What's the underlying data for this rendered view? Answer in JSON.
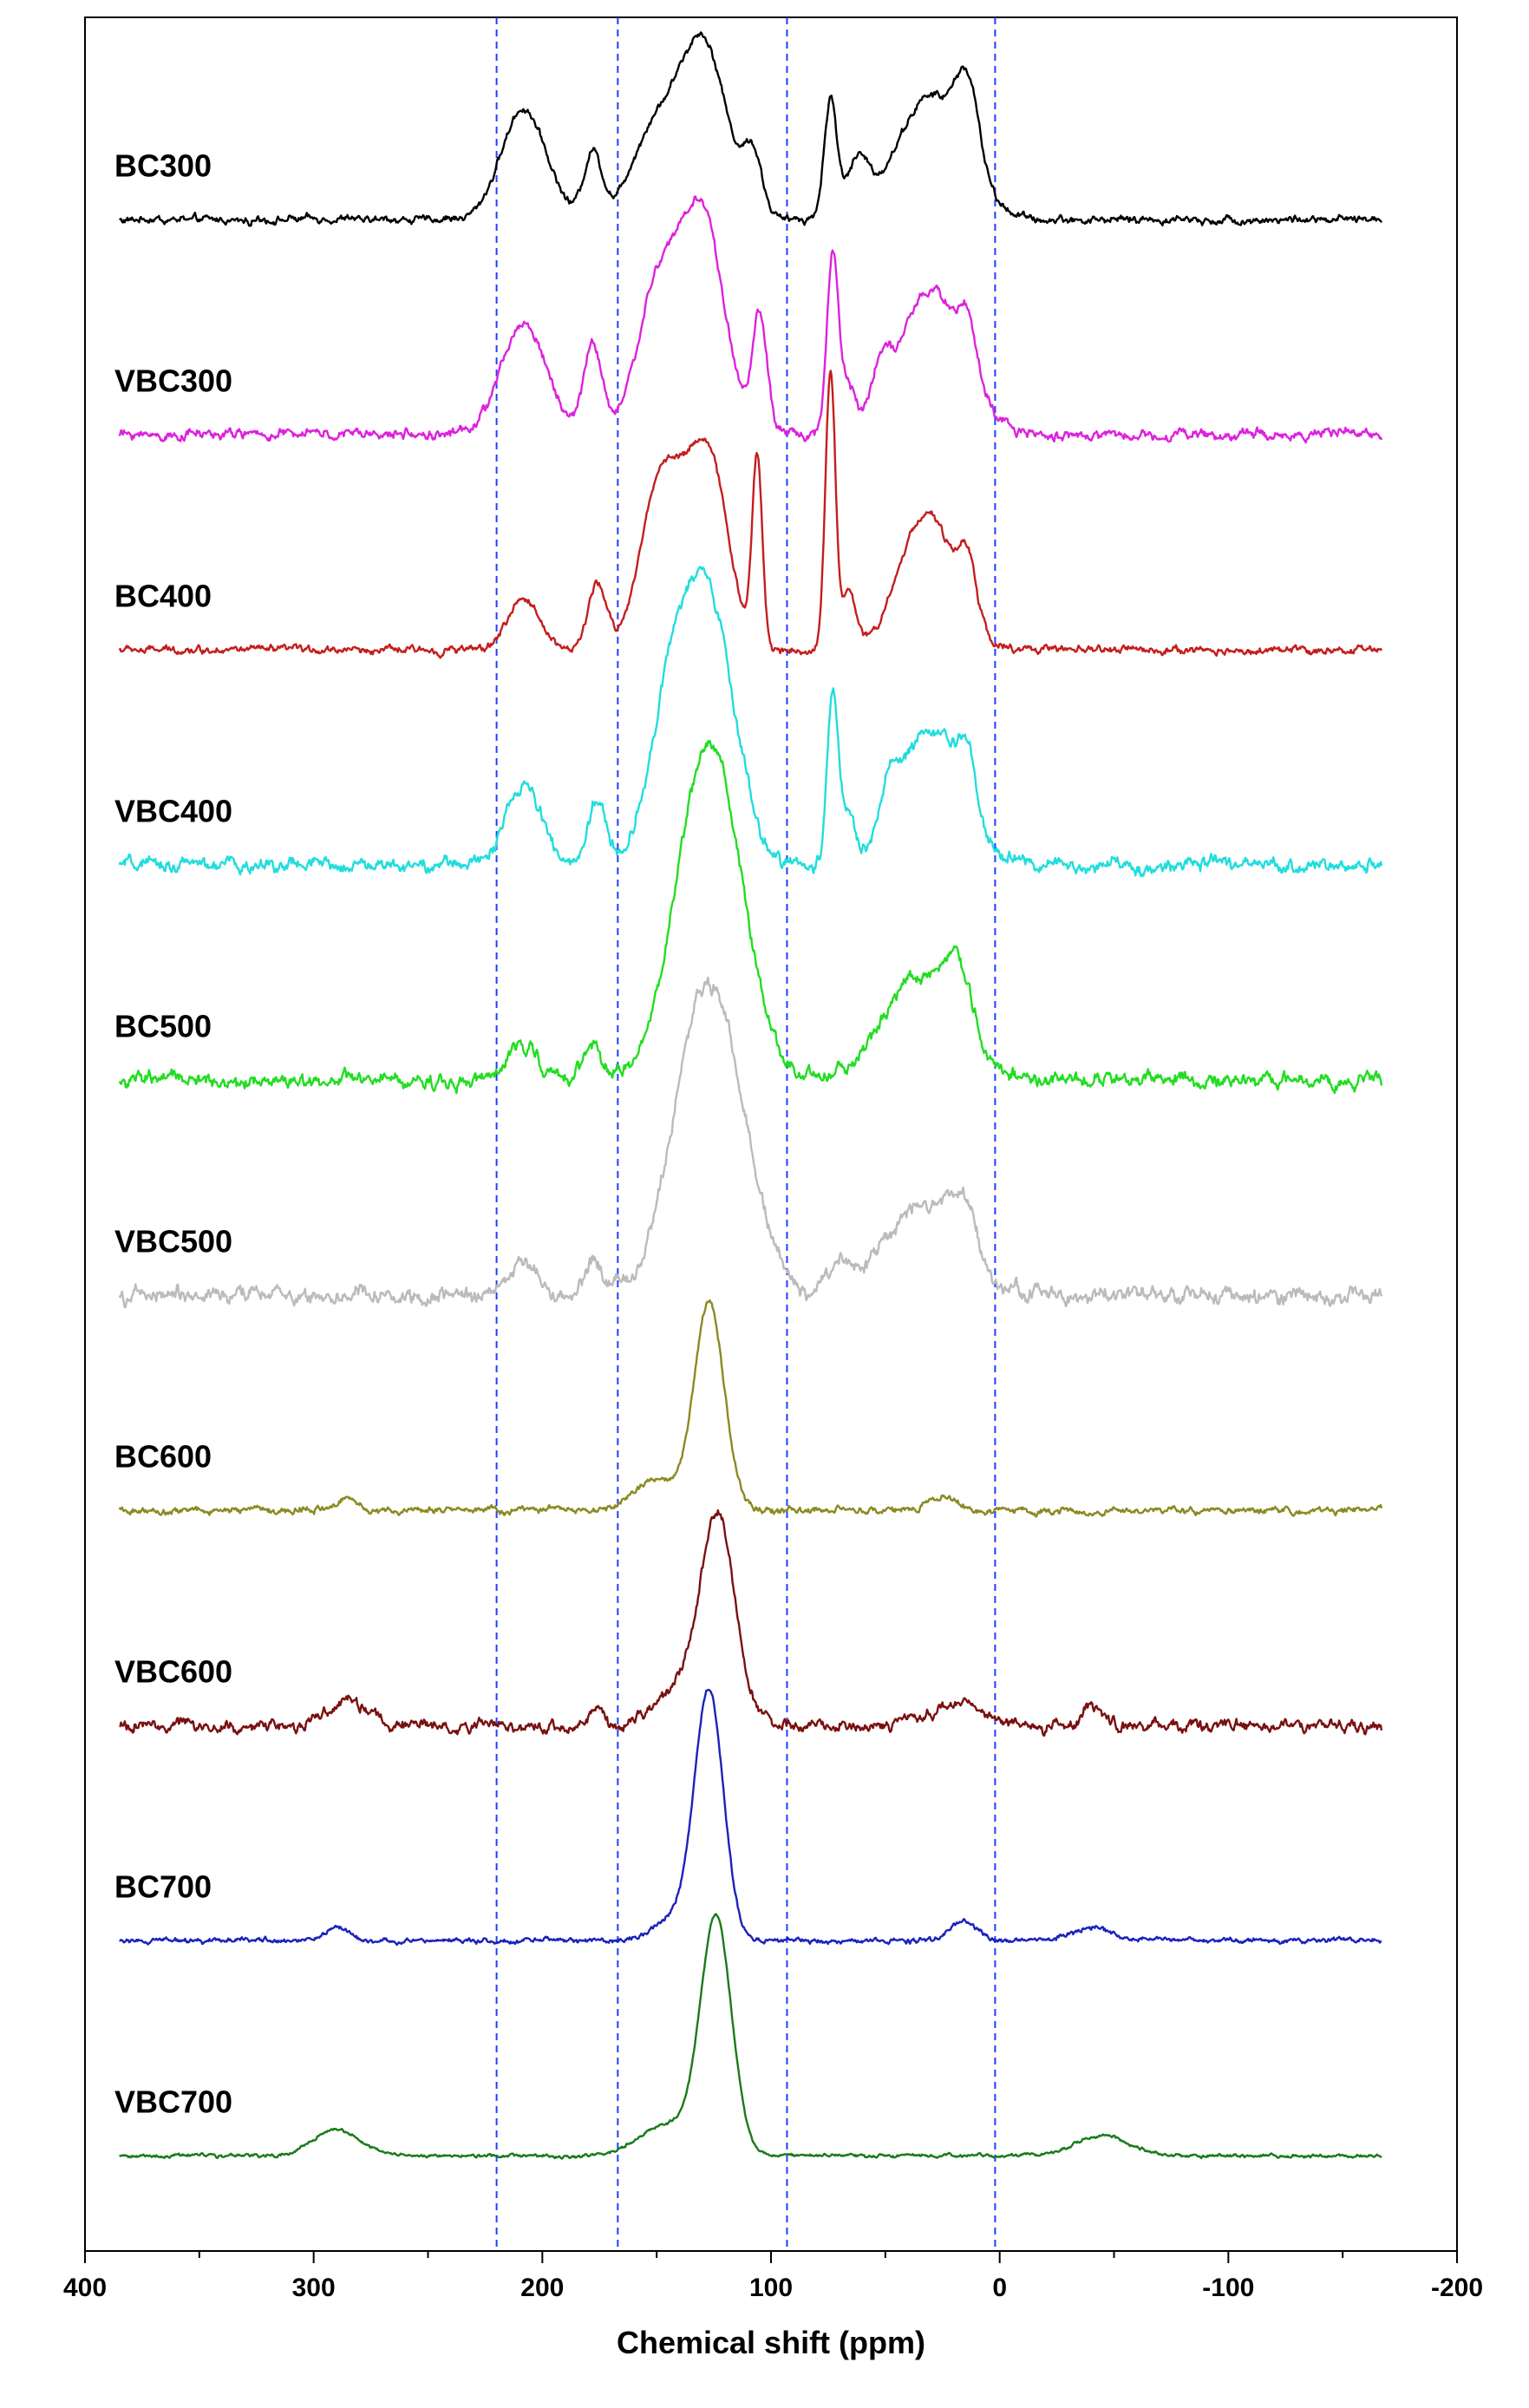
{
  "chart_data": {
    "type": "line",
    "title": "",
    "xlabel": "Chemical shift (ppm)",
    "ylabel": "",
    "xlim": [
      400,
      -200
    ],
    "x_ticks": [
      400,
      300,
      200,
      100,
      0,
      -100,
      -200
    ],
    "x_tick_labels": [
      "400",
      "300",
      "200",
      "100",
      "0",
      "-100",
      "-200"
    ],
    "x_data_range": [
      385,
      -167
    ],
    "grid": false,
    "legend": "none",
    "reference_lines": {
      "x_values": [
        220,
        167,
        93,
        2
      ],
      "style": "dashed",
      "color": "#1f3fff"
    },
    "series": [
      {
        "name": "BC300",
        "color": "#000000",
        "baseline": 0.9,
        "peaks": [
          [
            208,
            17,
            10
          ],
          [
            178,
            10,
            4
          ],
          [
            150,
            14,
            11
          ],
          [
            129,
            26,
            10
          ],
          [
            108,
            9,
            4
          ],
          [
            74,
            18,
            2.8
          ],
          [
            62,
            8,
            5
          ],
          [
            30,
            19,
            15
          ],
          [
            14,
            12,
            5
          ]
        ],
        "noise": 0.9
      },
      {
        "name": "VBC300",
        "color": "#dd22dd",
        "baseline": 0.9,
        "peaks": [
          [
            208,
            17,
            10
          ],
          [
            178,
            14,
            4
          ],
          [
            148,
            24,
            10
          ],
          [
            129,
            31,
            9
          ],
          [
            105,
            18,
            3.2
          ],
          [
            73,
            28,
            2.5
          ],
          [
            66,
            7,
            3
          ],
          [
            52,
            7,
            4
          ],
          [
            30,
            22,
            14
          ],
          [
            14,
            8,
            4
          ]
        ],
        "noise": 1.2
      },
      {
        "name": "BC400",
        "color": "#c41e1e",
        "baseline": 0.9,
        "peaks": [
          [
            208,
            8,
            7
          ],
          [
            176,
            10,
            4
          ],
          [
            148,
            26,
            9
          ],
          [
            128,
            30,
            9
          ],
          [
            106,
            29,
            2.2
          ],
          [
            74,
            43,
            2.2
          ],
          [
            66,
            9,
            3
          ],
          [
            32,
            21,
            12
          ],
          [
            14,
            9,
            4
          ]
        ],
        "noise": 0.9
      },
      {
        "name": "VBC400",
        "color": "#22dddd",
        "baseline": 0.9,
        "peaks": [
          [
            208,
            12,
            8
          ],
          [
            176,
            10,
            4
          ],
          [
            143,
            25,
            10
          ],
          [
            126,
            36,
            11
          ],
          [
            73,
            26,
            2.5
          ],
          [
            66,
            7,
            3
          ],
          [
            48,
            7,
            4
          ],
          [
            30,
            21,
            13
          ],
          [
            14,
            9,
            4
          ]
        ],
        "noise": 1.6
      },
      {
        "name": "BC500",
        "color": "#22dd22",
        "baseline": 0.9,
        "peaks": [
          [
            208,
            6,
            6
          ],
          [
            178,
            5,
            4
          ],
          [
            127,
            52,
            14
          ],
          [
            35,
            16,
            16
          ],
          [
            18,
            10,
            6
          ]
        ],
        "noise": 1.7
      },
      {
        "name": "VBC500",
        "color": "#bbbbbb",
        "baseline": 0.9,
        "peaks": [
          [
            208,
            5,
            6
          ],
          [
            178,
            5,
            4
          ],
          [
            127,
            48,
            15
          ],
          [
            70,
            4,
            5
          ],
          [
            34,
            14,
            16
          ],
          [
            16,
            8,
            6
          ]
        ],
        "noise": 1.9
      },
      {
        "name": "BC600",
        "color": "#8b8a22",
        "baseline": 0.9,
        "peaks": [
          [
            285,
            2,
            4
          ],
          [
            150,
            5,
            9
          ],
          [
            127,
            32,
            6.5
          ],
          [
            25,
            2,
            6
          ]
        ],
        "noise": 0.8
      },
      {
        "name": "VBC600",
        "color": "#7a1010",
        "baseline": 0.9,
        "peaks": [
          [
            285,
            4,
            8
          ],
          [
            176,
            3,
            3
          ],
          [
            138,
            6,
            10
          ],
          [
            123,
            31,
            7.5
          ],
          [
            20,
            3,
            12
          ],
          [
            -40,
            3,
            4
          ]
        ],
        "noise": 1.4
      },
      {
        "name": "BC700",
        "color": "#1c22bb",
        "baseline": 0.9,
        "peaks": [
          [
            290,
            2,
            5
          ],
          [
            140,
            4,
            10
          ],
          [
            127,
            37,
            6.2
          ],
          [
            16,
            3,
            6
          ],
          [
            -40,
            2,
            8
          ]
        ],
        "noise": 0.6
      },
      {
        "name": "VBC700",
        "color": "#1a7a1a",
        "baseline": 0.9,
        "peaks": [
          [
            290,
            4,
            10
          ],
          [
            145,
            5,
            12
          ],
          [
            124,
            36,
            6.8
          ],
          [
            -45,
            3,
            12
          ]
        ],
        "noise": 0.4
      }
    ]
  }
}
